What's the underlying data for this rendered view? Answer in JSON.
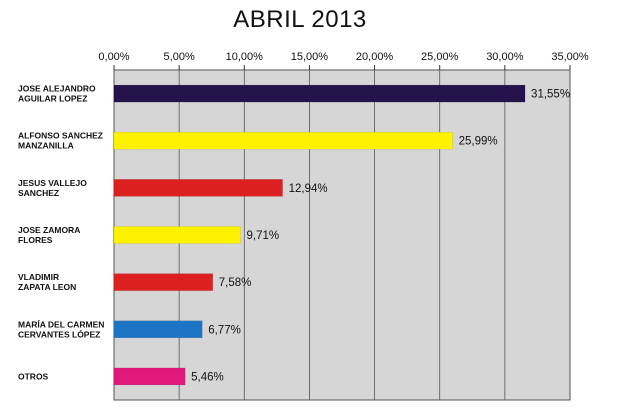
{
  "chart_data": {
    "type": "bar",
    "orientation": "horizontal",
    "title": "ABRIL 2013",
    "xlim": [
      0,
      35
    ],
    "x_ticks": [
      0,
      5,
      10,
      15,
      20,
      25,
      30,
      35
    ],
    "x_tick_labels": [
      "0,00%",
      "5,00%",
      "10,00%",
      "15,00%",
      "20,00%",
      "25,00%",
      "30,00%",
      "35,00%"
    ],
    "x_axis_position": "top",
    "grid": true,
    "plot_background": "#d6d6d6",
    "categories": [
      [
        "JOSE ALEJANDRO",
        "AGUILAR LOPEZ"
      ],
      [
        "ALFONSO SANCHEZ",
        "MANZANILLA"
      ],
      [
        "JESUS VALLEJO",
        "SANCHEZ"
      ],
      [
        "JOSE ZAMORA",
        "FLORES"
      ],
      [
        "VLADIMIR",
        "ZAPATA LEON"
      ],
      [
        "MARÍA DEL CARMEN",
        "CERVANTES LÓPEZ"
      ],
      [
        "OTROS"
      ]
    ],
    "values": [
      31.55,
      25.99,
      12.94,
      9.71,
      7.58,
      6.77,
      5.46
    ],
    "value_labels": [
      "31,55%",
      "25,99%",
      "12,94%",
      "9,71%",
      "7,58%",
      "6,77%",
      "5,46%"
    ],
    "colors": [
      "#24124a",
      "#fff200",
      "#dc2020",
      "#fff200",
      "#dc2020",
      "#1e74c4",
      "#e0187a"
    ]
  }
}
